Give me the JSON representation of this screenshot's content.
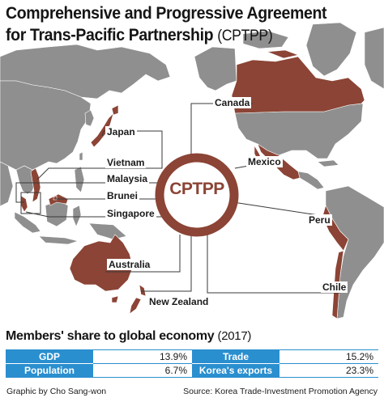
{
  "header": {
    "title_line1": "Comprehensive and Progressive Agreement",
    "title_line2_main": "for Trans-Pacific Partnership ",
    "title_line2_paren": "(CPTPP)"
  },
  "map": {
    "center_label": "CPTPP",
    "colors": {
      "member": "#8b4435",
      "non_member": "#8f8f8f",
      "ocean": "#ffffff",
      "ring": "#8b4435",
      "leader": "#3a3a3a"
    },
    "members_left": [
      "Japan",
      "Vietnam",
      "Malaysia",
      "Brunei",
      "Singapore",
      "Australia",
      "New Zealand"
    ],
    "members_right": [
      "Canada",
      "Mexico",
      "Peru",
      "Chile"
    ],
    "labels": {
      "japan": "Japan",
      "vietnam": "Vietnam",
      "malaysia": "Malaysia",
      "brunei": "Brunei",
      "singapore": "Singapore",
      "australia": "Australia",
      "new_zealand": "New Zealand",
      "canada": "Canada",
      "mexico": "Mexico",
      "peru": "Peru",
      "chile": "Chile"
    }
  },
  "stats": {
    "title_main": "Members' share to global economy ",
    "title_year": "(2017)",
    "rows": [
      {
        "label1": "GDP",
        "value1": "13.9%",
        "label2": "Trade",
        "value2": "15.2%"
      },
      {
        "label1": "Population",
        "value1": "6.7%",
        "label2": "Korea's exports",
        "value2": "23.3%"
      }
    ]
  },
  "footer": {
    "credit": "Graphic by Cho Sang-won",
    "source": "Source: Korea Trade-Investment Promotion Agency"
  }
}
